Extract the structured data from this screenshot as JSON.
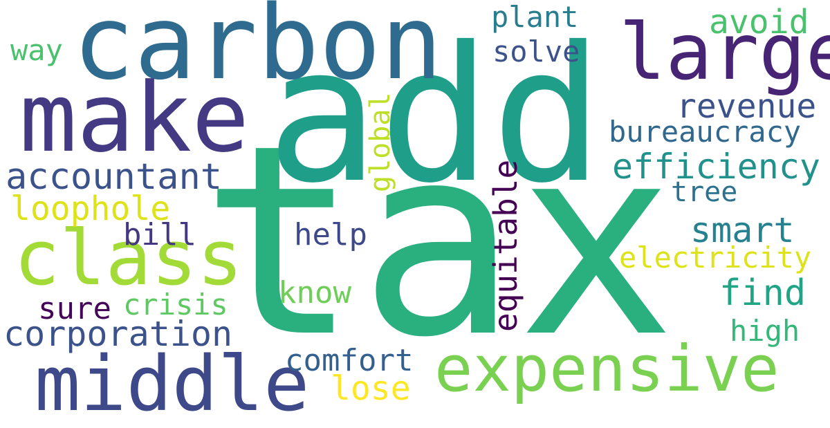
{
  "words": [
    {
      "text": "tax",
      "color": "#2ab07f"
    },
    {
      "text": "add",
      "color": "#1f9e89"
    },
    {
      "text": "carbon",
      "color": "#2f6b8e"
    },
    {
      "text": "make",
      "color": "#443a83"
    },
    {
      "text": "large",
      "color": "#482475"
    },
    {
      "text": "class",
      "color": "#a2da37"
    },
    {
      "text": "middle",
      "color": "#3e4989"
    },
    {
      "text": "expensive",
      "color": "#7ad151"
    },
    {
      "text": "plant",
      "color": "#287d8e"
    },
    {
      "text": "solve",
      "color": "#3b528b"
    },
    {
      "text": "avoid",
      "color": "#4ac16d"
    },
    {
      "text": "way",
      "color": "#4ac16d"
    },
    {
      "text": "revenue",
      "color": "#3b528b"
    },
    {
      "text": "bureaucracy",
      "color": "#31688e"
    },
    {
      "text": "efficiency",
      "color": "#21918c"
    },
    {
      "text": "accountant",
      "color": "#3b528b"
    },
    {
      "text": "tree",
      "color": "#2c728e"
    },
    {
      "text": "loophole",
      "color": "#dde318"
    },
    {
      "text": "global",
      "color": "#bddf26"
    },
    {
      "text": "equitable",
      "color": "#440154"
    },
    {
      "text": "bill",
      "color": "#453781"
    },
    {
      "text": "help",
      "color": "#3e4989"
    },
    {
      "text": "smart",
      "color": "#26828e"
    },
    {
      "text": "electricity",
      "color": "#dde318"
    },
    {
      "text": "know",
      "color": "#6ece58"
    },
    {
      "text": "find",
      "color": "#20a486"
    },
    {
      "text": "sure",
      "color": "#450559"
    },
    {
      "text": "crisis",
      "color": "#5ec962"
    },
    {
      "text": "corporation",
      "color": "#3b528b"
    },
    {
      "text": "high",
      "color": "#35b779"
    },
    {
      "text": "comfort",
      "color": "#35608d"
    },
    {
      "text": "lose",
      "color": "#fde725"
    }
  ]
}
